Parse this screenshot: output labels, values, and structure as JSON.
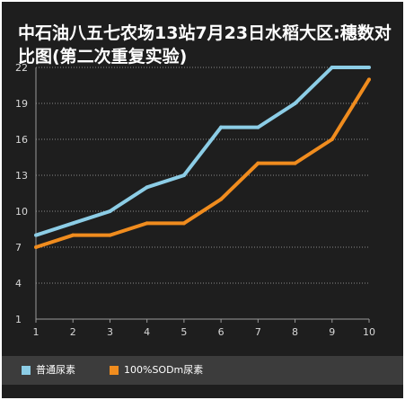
{
  "chart_data": {
    "type": "line",
    "title": "中石油八五七农场13站7月23日水稻大区:穗数对比图(第二次重复实验)",
    "xlabel": "",
    "ylabel": "",
    "x": [
      1,
      2,
      3,
      4,
      5,
      6,
      7,
      8,
      9,
      10
    ],
    "yticks": [
      1,
      4,
      7,
      10,
      13,
      16,
      19,
      22
    ],
    "ylim": [
      1,
      22
    ],
    "xlim": [
      1,
      10
    ],
    "grid": "horizontal dotted",
    "legend_position": "bottom",
    "series": [
      {
        "name": "普通尿素",
        "color": "#8ccde6",
        "values": [
          8,
          9,
          10,
          12,
          13,
          17,
          17,
          19,
          22,
          22
        ]
      },
      {
        "name": "100%SODm尿素",
        "color": "#f08c1e",
        "values": [
          7,
          8,
          8,
          9,
          9,
          11,
          14,
          14,
          16,
          21
        ]
      }
    ]
  }
}
